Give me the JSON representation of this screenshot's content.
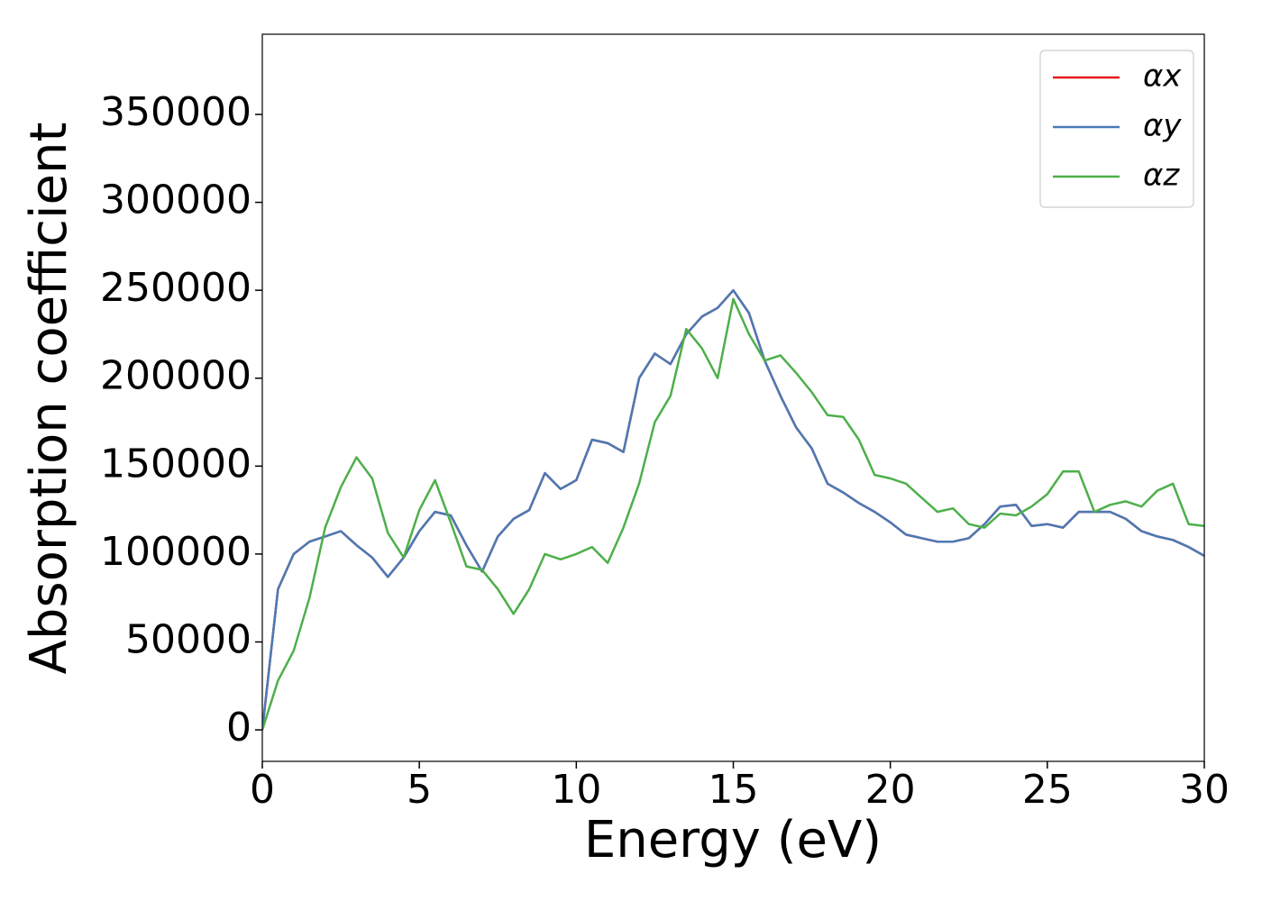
{
  "chart_data": {
    "type": "line",
    "xlabel": "Energy (eV)",
    "ylabel": "Absorption coefficient",
    "x": [
      0,
      0.5,
      1,
      1.5,
      2,
      2.5,
      3,
      3.5,
      4,
      4.5,
      5,
      5.5,
      6,
      6.5,
      7,
      7.5,
      8,
      8.5,
      9,
      9.5,
      10,
      10.5,
      11,
      11.5,
      12,
      12.5,
      13,
      13.5,
      14,
      14.5,
      15,
      15.5,
      16,
      16.5,
      17,
      17.5,
      18,
      18.5,
      19,
      19.5,
      20,
      20.5,
      21,
      21.5,
      22,
      22.5,
      23,
      23.5,
      24,
      24.5,
      25,
      25.5,
      26,
      26.5,
      27,
      27.5,
      28,
      28.5,
      29,
      29.5,
      30
    ],
    "series": [
      {
        "name": "αx",
        "color": "#e41a1c",
        "values": [
          0,
          80000,
          100000,
          107000,
          110000,
          113000,
          105000,
          98000,
          87000,
          98000,
          113000,
          124000,
          122000,
          105000,
          90000,
          110000,
          120000,
          125000,
          146000,
          137000,
          142000,
          165000,
          163000,
          158000,
          200000,
          214000,
          208000,
          225000,
          235000,
          240000,
          250000,
          237000,
          210000,
          190000,
          172000,
          160000,
          140000,
          135000,
          129000,
          124000,
          118000,
          111000,
          109000,
          107000,
          107000,
          109000,
          117000,
          127000,
          128000,
          116000,
          117000,
          115000,
          124000,
          124000,
          124000,
          120000,
          113000,
          110000,
          108000,
          104000,
          99000
        ]
      },
      {
        "name": "αy",
        "color": "#4a7ab5",
        "values": [
          0,
          80000,
          100000,
          107000,
          110000,
          113000,
          105000,
          98000,
          87000,
          98000,
          113000,
          124000,
          122000,
          105000,
          90000,
          110000,
          120000,
          125000,
          146000,
          137000,
          142000,
          165000,
          163000,
          158000,
          200000,
          214000,
          208000,
          225000,
          235000,
          240000,
          250000,
          237000,
          210000,
          190000,
          172000,
          160000,
          140000,
          135000,
          129000,
          124000,
          118000,
          111000,
          109000,
          107000,
          107000,
          109000,
          117000,
          127000,
          128000,
          116000,
          117000,
          115000,
          124000,
          124000,
          124000,
          120000,
          113000,
          110000,
          108000,
          104000,
          99000
        ]
      },
      {
        "name": "αz",
        "color": "#4daf4a",
        "values": [
          0,
          28000,
          45000,
          75000,
          115000,
          138000,
          155000,
          143000,
          112000,
          98000,
          125000,
          142000,
          118000,
          93000,
          91000,
          80000,
          66000,
          80000,
          100000,
          97000,
          100000,
          104000,
          95000,
          115000,
          140000,
          175000,
          190000,
          228000,
          217000,
          200000,
          245000,
          225000,
          210000,
          213000,
          203000,
          192000,
          179000,
          178000,
          165000,
          145000,
          143000,
          140000,
          132000,
          124000,
          126000,
          117000,
          115000,
          123000,
          122000,
          127000,
          134000,
          147000,
          147000,
          124000,
          128000,
          130000,
          127000,
          136000,
          140000,
          117000,
          116000
        ]
      }
    ],
    "xlim": [
      0,
      30
    ],
    "xticks": [
      0,
      5,
      10,
      15,
      20,
      25,
      30
    ],
    "ylim": [
      -17900,
      395600
    ],
    "yticks": [
      0,
      50000,
      100000,
      150000,
      200000,
      250000,
      300000,
      350000
    ],
    "legend": "upper right",
    "grid": false
  }
}
